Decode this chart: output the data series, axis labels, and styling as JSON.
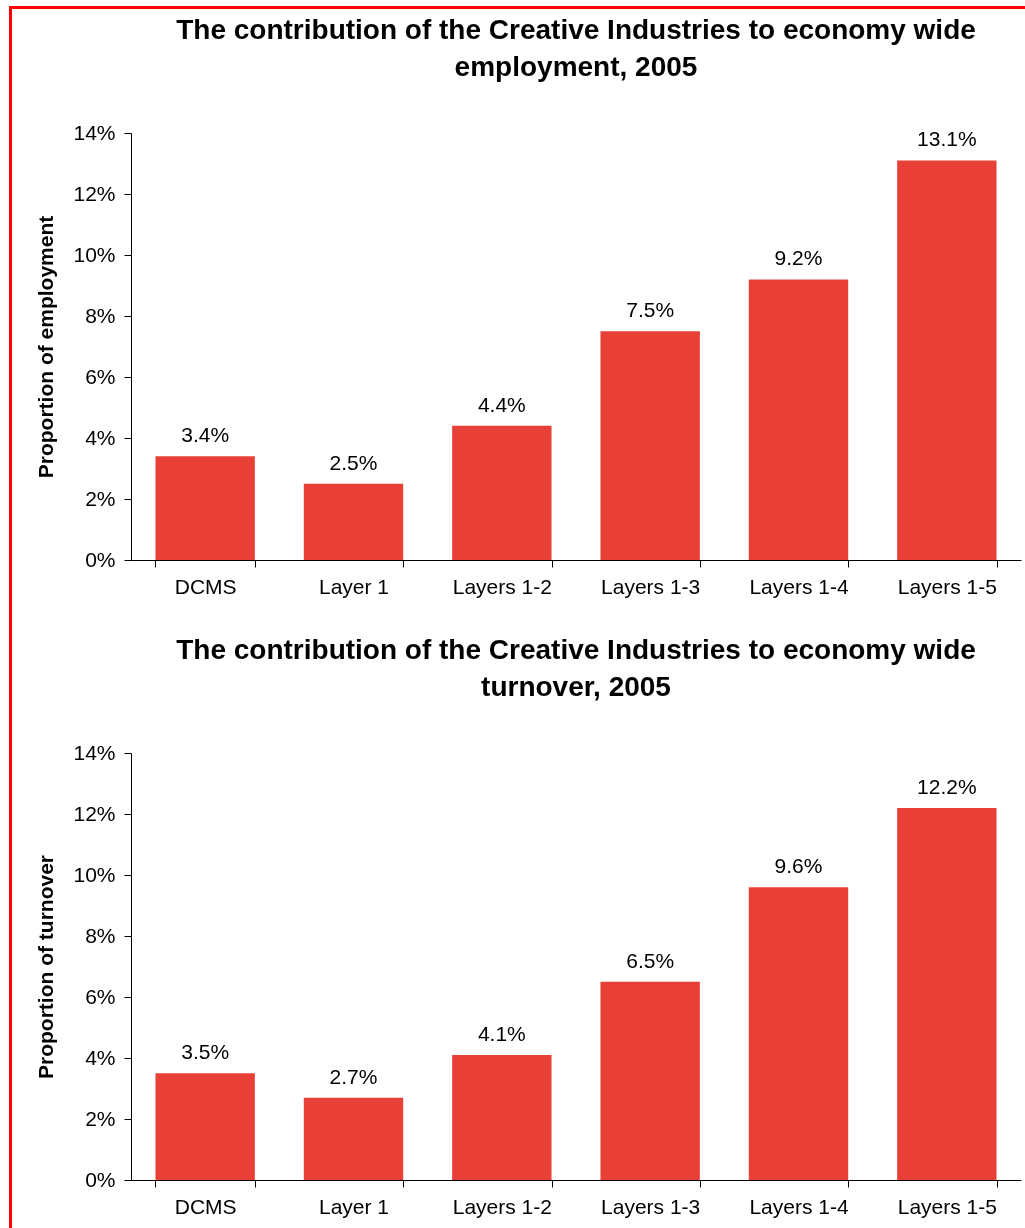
{
  "chart_data": [
    {
      "type": "bar",
      "title": "The contribution of the Creative Industries to economy wide employment, 2005",
      "ylabel": "Proportion of employment",
      "categories": [
        "DCMS",
        "Layer 1",
        "Layers 1-2",
        "Layers 1-3",
        "Layers 1-4",
        "Layers 1-5"
      ],
      "values": [
        3.4,
        2.5,
        4.4,
        7.5,
        9.2,
        13.1
      ],
      "value_labels": [
        "3.4%",
        "2.5%",
        "4.4%",
        "7.5%",
        "9.2%",
        "13.1%"
      ],
      "color": "#e84036",
      "ylim": [
        0,
        14
      ],
      "yticks": [
        {
          "value": 0,
          "label": "0%"
        },
        {
          "value": 2,
          "label": "2%"
        },
        {
          "value": 4,
          "label": "4%"
        },
        {
          "value": 6,
          "label": "6%"
        },
        {
          "value": 8,
          "label": "8%"
        },
        {
          "value": 10,
          "label": "10%"
        },
        {
          "value": 12,
          "label": "12%"
        },
        {
          "value": 14,
          "label": "14%"
        }
      ]
    },
    {
      "type": "bar",
      "title": "The contribution of the Creative Industries to economy wide turnover, 2005",
      "ylabel": "Proportion of turnover",
      "categories": [
        "DCMS",
        "Layer 1",
        "Layers 1-2",
        "Layers 1-3",
        "Layers 1-4",
        "Layers 1-5"
      ],
      "values": [
        3.5,
        2.7,
        4.1,
        6.5,
        9.6,
        12.2
      ],
      "value_labels": [
        "3.5%",
        "2.7%",
        "4.1%",
        "6.5%",
        "9.6%",
        "12.2%"
      ],
      "color": "#e84036",
      "ylim": [
        0,
        14
      ],
      "yticks": [
        {
          "value": 0,
          "label": "0%"
        },
        {
          "value": 2,
          "label": "2%"
        },
        {
          "value": 4,
          "label": "4%"
        },
        {
          "value": 6,
          "label": "6%"
        },
        {
          "value": 8,
          "label": "8%"
        },
        {
          "value": 10,
          "label": "10%"
        },
        {
          "value": 12,
          "label": "12%"
        },
        {
          "value": 14,
          "label": "14%"
        }
      ]
    }
  ]
}
